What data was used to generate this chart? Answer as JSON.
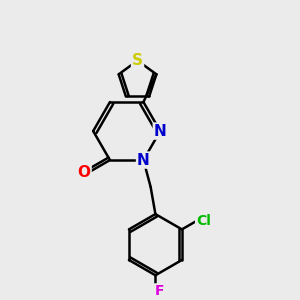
{
  "background_color": "#ebebeb",
  "bond_color": "#000000",
  "atom_colors": {
    "O": "#ff0000",
    "N": "#0000cc",
    "S": "#cccc00",
    "Cl": "#00bb00",
    "F": "#dd00dd",
    "C": "#000000"
  },
  "font_size": 10,
  "line_width": 1.8,
  "figsize": [
    3.0,
    3.0
  ],
  "dpi": 100
}
